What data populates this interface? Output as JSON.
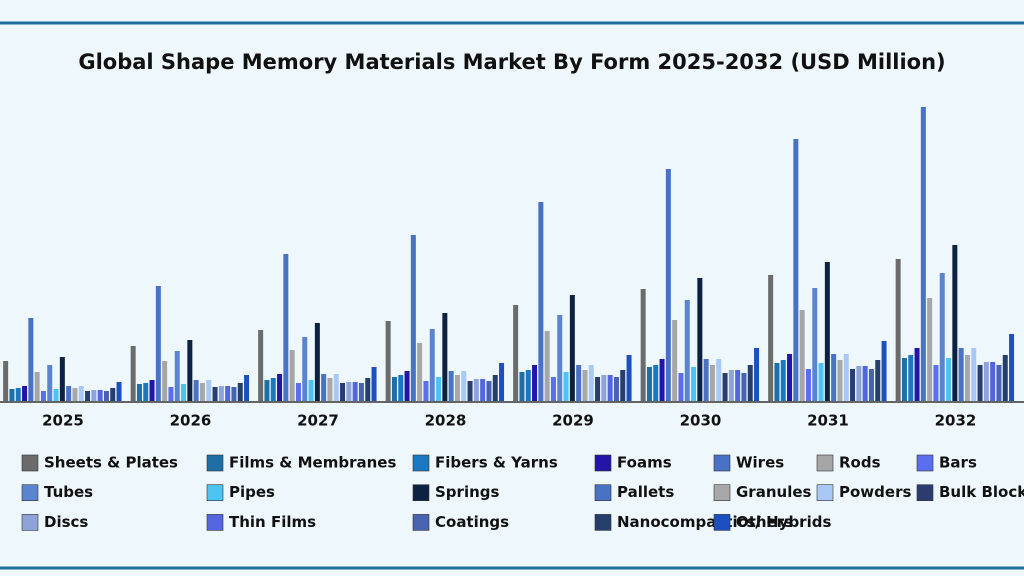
{
  "chart_data": {
    "type": "bar",
    "title": "Global Shape Memory Materials Market By Form 2025-2032 (USD Million)",
    "categories": [
      "2025",
      "2026",
      "2027",
      "2028",
      "2029",
      "2030",
      "2031",
      "2032"
    ],
    "ylim": [
      0,
      300
    ],
    "series": [
      {
        "name": "Sheets & Plates",
        "color": "#6b6b6b",
        "values": [
          40,
          55,
          71,
          80,
          96,
          112,
          126,
          142
        ]
      },
      {
        "name": "Films & Membranes",
        "color": "#1d6fa5",
        "values": [
          12,
          17,
          21,
          24,
          29,
          34,
          38,
          43
        ]
      },
      {
        "name": "Fibers & Yarns",
        "color": "#1a78c2",
        "values": [
          13,
          18,
          23,
          26,
          31,
          36,
          41,
          46
        ]
      },
      {
        "name": "Foams",
        "color": "#2316a6",
        "values": [
          15,
          21,
          27,
          30,
          36,
          42,
          47,
          53
        ]
      },
      {
        "name": "Wires",
        "color": "#4a72c4",
        "values": [
          83,
          115,
          147,
          166,
          199,
          232,
          262,
          294
        ]
      },
      {
        "name": "Rods",
        "color": "#a6a6a6",
        "values": [
          29,
          40,
          51,
          58,
          70,
          81,
          91,
          103
        ]
      },
      {
        "name": "Bars",
        "color": "#5b6ef0",
        "values": [
          10,
          14,
          18,
          20,
          24,
          28,
          32,
          36
        ]
      },
      {
        "name": "Tubes",
        "color": "#5b84d0",
        "values": [
          36,
          50,
          64,
          72,
          86,
          101,
          113,
          128
        ]
      },
      {
        "name": "Pipes",
        "color": "#4cc3f0",
        "values": [
          12,
          17,
          21,
          24,
          29,
          34,
          38,
          43
        ]
      },
      {
        "name": "Springs",
        "color": "#0d2240",
        "values": [
          44,
          61,
          78,
          88,
          106,
          123,
          139,
          156
        ]
      },
      {
        "name": "Pallets",
        "color": "#4a72c4",
        "values": [
          15,
          21,
          27,
          30,
          36,
          42,
          47,
          53
        ]
      },
      {
        "name": "Granules",
        "color": "#a8a8a8",
        "values": [
          13,
          18,
          23,
          26,
          31,
          36,
          41,
          46
        ]
      },
      {
        "name": "Powders",
        "color": "#a9c8f5",
        "values": [
          15,
          21,
          27,
          30,
          36,
          42,
          47,
          53
        ]
      },
      {
        "name": "Bulk Blocks",
        "color": "#2a3d6e",
        "values": [
          10,
          14,
          18,
          20,
          24,
          28,
          32,
          36
        ]
      },
      {
        "name": "Discs",
        "color": "#8ea4d8",
        "values": [
          11,
          15,
          19,
          22,
          26,
          31,
          35,
          39
        ]
      },
      {
        "name": "Thin Films",
        "color": "#5366e0",
        "values": [
          11,
          15,
          19,
          22,
          26,
          31,
          35,
          39
        ]
      },
      {
        "name": "Coatings",
        "color": "#4863b0",
        "values": [
          10,
          14,
          18,
          20,
          24,
          28,
          32,
          36
        ]
      },
      {
        "name": "Nanocompastics/ Hybrids",
        "color": "#263e6a",
        "values": [
          13,
          18,
          23,
          26,
          31,
          36,
          41,
          46
        ]
      },
      {
        "name": "Others",
        "color": "#1c4fbf",
        "values": [
          19,
          26,
          34,
          38,
          46,
          53,
          60,
          67
        ]
      }
    ]
  }
}
